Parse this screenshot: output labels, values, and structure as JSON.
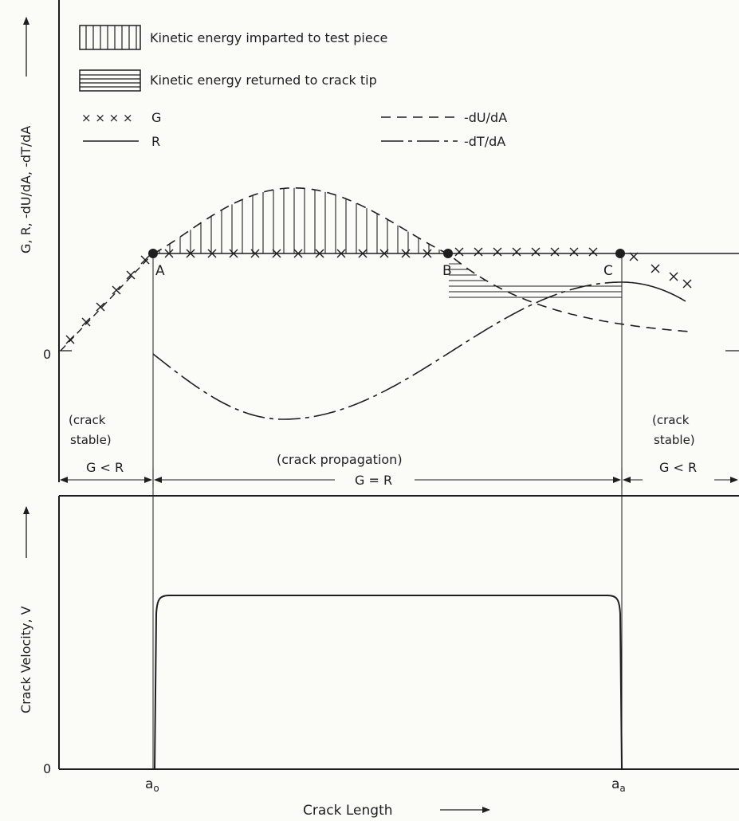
{
  "legend": {
    "hatch_vertical": "Kinetic energy imparted to test piece",
    "hatch_horizontal": "Kinetic energy returned to crack tip",
    "g_symbol": "× × × ×",
    "g_label": "G",
    "r_label": "R",
    "dudA_label": "-dU/dA",
    "dtdA_label": "-dT/dA"
  },
  "upper_y_label": "G, R,  -dU/dA,  -dT/dA",
  "lower_y_label": "Crack Velocity, V",
  "x_label": "Crack Length",
  "zero_upper": "0",
  "zero_lower": "0",
  "points": {
    "a": "A",
    "b": "B",
    "c": "C"
  },
  "regions": {
    "left_text_1": "(crack",
    "left_text_2": "stable)",
    "left_relation": "G < R",
    "middle_text": "(crack propagation)",
    "middle_relation": "G = R",
    "right_text_1": "(crack",
    "right_text_2": "stable)",
    "right_relation": "G < R"
  },
  "x_ticks": {
    "a0": "a",
    "a0_sub": "o",
    "aa": "a",
    "aa_sub": "a"
  },
  "colors": {
    "ink": "#1e1e1e",
    "paper": "#fbfbf8"
  }
}
